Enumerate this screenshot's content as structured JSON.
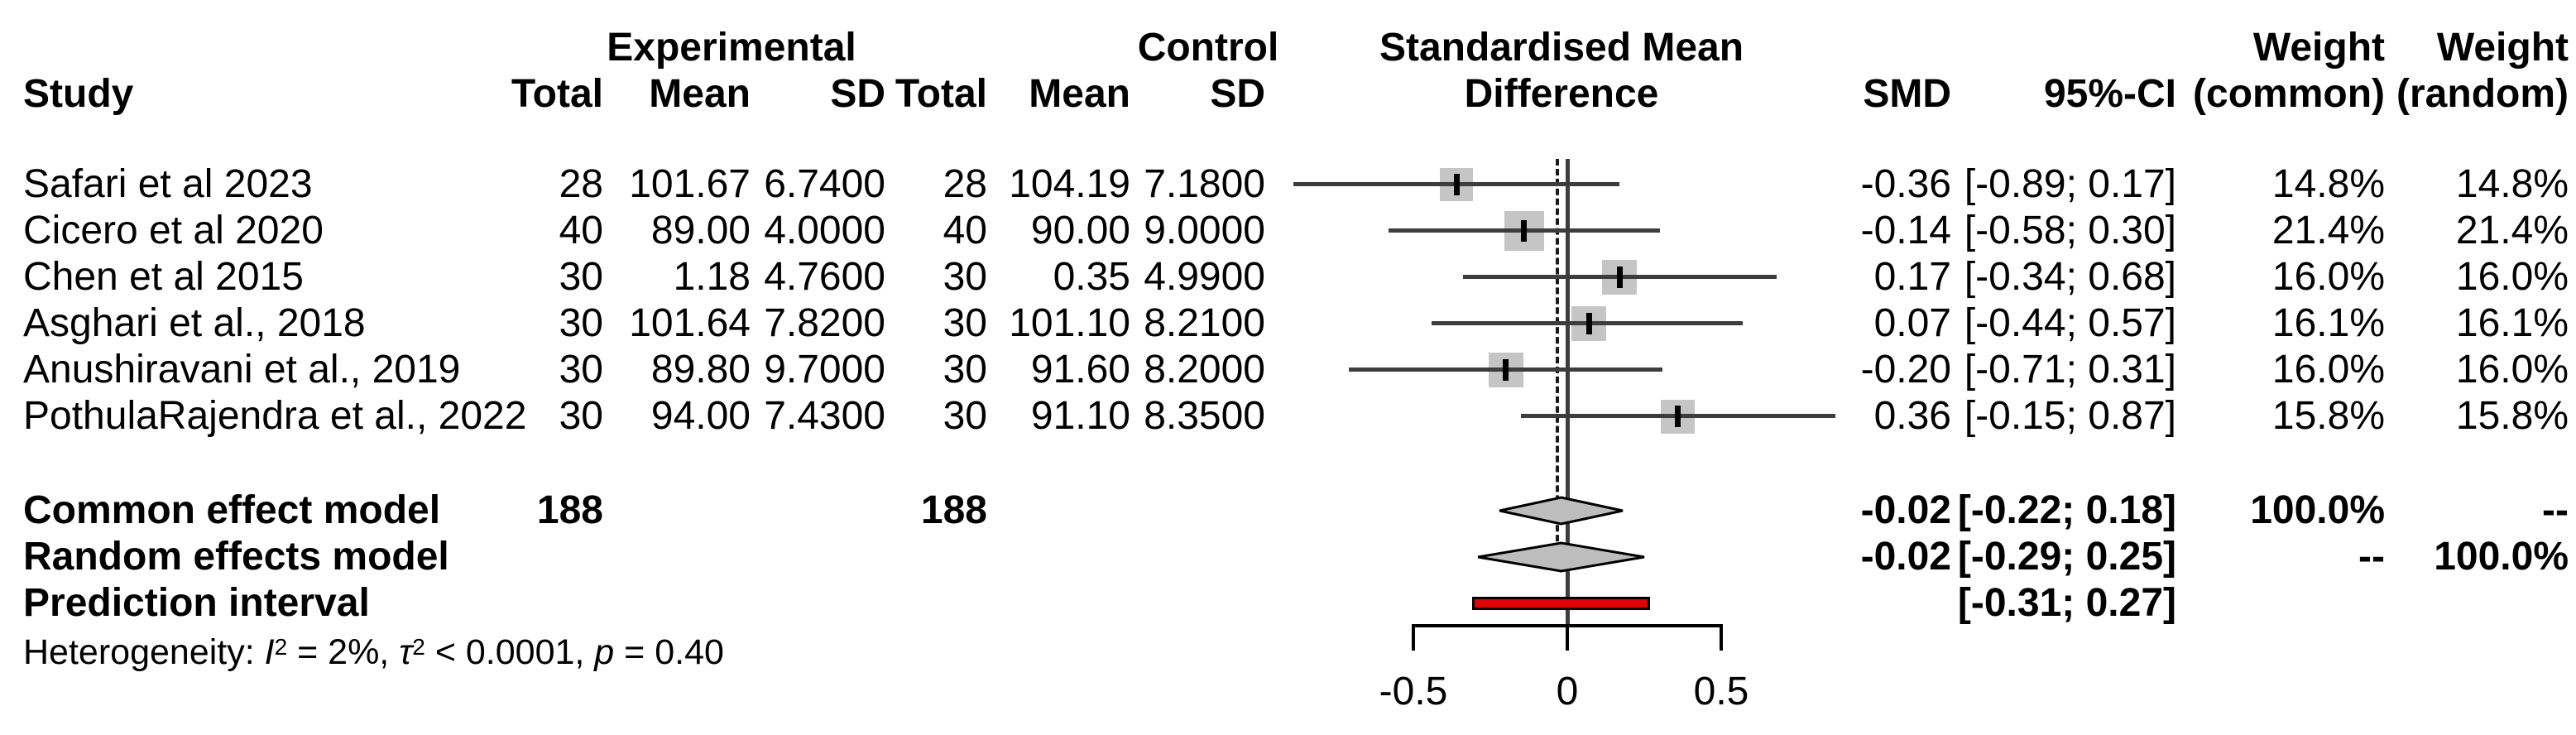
{
  "header": {
    "study": "Study",
    "group_experimental": "Experimental",
    "group_control": "Control",
    "exp_total": "Total",
    "exp_mean": "Mean",
    "exp_sd": "SD",
    "ctrl_total": "Total",
    "ctrl_mean": "Mean",
    "ctrl_sd": "SD",
    "plot_title_line1": "Standardised Mean",
    "plot_title_line2": "Difference",
    "smd": "SMD",
    "ci": "95%-CI",
    "weight_common": "Weight",
    "weight_common_sub": "(common)",
    "weight_random": "Weight",
    "weight_random_sub": "(random)"
  },
  "studies": [
    {
      "name": "Safari et al 2023",
      "exp_total": "28",
      "exp_mean": "101.67",
      "exp_sd": "6.7400",
      "ctrl_total": "28",
      "ctrl_mean": "104.19",
      "ctrl_sd": "7.1800",
      "smd_label": "-0.36",
      "ci_label": "[-0.89; 0.17]",
      "weight_common": "14.8%",
      "weight_random": "14.8%"
    },
    {
      "name": "Cicero et al 2020",
      "exp_total": "40",
      "exp_mean": "89.00",
      "exp_sd": "4.0000",
      "ctrl_total": "40",
      "ctrl_mean": "90.00",
      "ctrl_sd": "9.0000",
      "smd_label": "-0.14",
      "ci_label": "[-0.58; 0.30]",
      "weight_common": "21.4%",
      "weight_random": "21.4%"
    },
    {
      "name": "Chen et al 2015",
      "exp_total": "30",
      "exp_mean": "1.18",
      "exp_sd": "4.7600",
      "ctrl_total": "30",
      "ctrl_mean": "0.35",
      "ctrl_sd": "4.9900",
      "smd_label": "0.17",
      "ci_label": "[-0.34; 0.68]",
      "weight_common": "16.0%",
      "weight_random": "16.0%"
    },
    {
      "name": "Asghari et al., 2018",
      "exp_total": "30",
      "exp_mean": "101.64",
      "exp_sd": "7.8200",
      "ctrl_total": "30",
      "ctrl_mean": "101.10",
      "ctrl_sd": "8.2100",
      "smd_label": "0.07",
      "ci_label": "[-0.44; 0.57]",
      "weight_common": "16.1%",
      "weight_random": "16.1%"
    },
    {
      "name": "Anushiravani et al., 2019",
      "exp_total": "30",
      "exp_mean": "89.80",
      "exp_sd": "9.7000",
      "ctrl_total": "30",
      "ctrl_mean": "91.60",
      "ctrl_sd": "8.2000",
      "smd_label": "-0.20",
      "ci_label": "[-0.71; 0.31]",
      "weight_common": "16.0%",
      "weight_random": "16.0%"
    },
    {
      "name": "PothulaRajendra et al., 2022",
      "exp_total": "30",
      "exp_mean": "94.00",
      "exp_sd": "7.4300",
      "ctrl_total": "30",
      "ctrl_mean": "91.10",
      "ctrl_sd": "8.3500",
      "smd_label": "0.36",
      "ci_label": "[-0.15; 0.87]",
      "weight_common": "15.8%",
      "weight_random": "15.8%"
    }
  ],
  "summary": {
    "common": {
      "label": "Common effect model",
      "exp_total": "188",
      "ctrl_total": "188",
      "smd_label": "-0.02",
      "ci_label": "[-0.22; 0.18]",
      "weight_common": "100.0%",
      "weight_random": "--"
    },
    "random": {
      "label": "Random effects model",
      "smd_label": "-0.02",
      "ci_label": "[-0.29; 0.25]",
      "weight_common": "--",
      "weight_random": "100.0%"
    },
    "prediction": {
      "label": "Prediction interval",
      "ci_label": "[-0.31; 0.27]"
    }
  },
  "heterogeneity": {
    "seg1": "Heterogeneity: ",
    "seg2": "I",
    "seg3": "2",
    "seg4": " = 2%, ",
    "seg5": "τ",
    "seg6": "2",
    "seg7": " < 0.0001, ",
    "seg8": "p",
    "seg9": " = 0.40"
  },
  "axis": {
    "tick_labels": [
      "-0.5",
      "0",
      "0.5"
    ]
  },
  "colors": {
    "background": "#ffffff",
    "text": "#000000",
    "ci_line": "#3d3d3d",
    "marker_fill": "#c5c5c5",
    "marker_tick": "#000000",
    "diamond_fill": "#bdbdbd",
    "diamond_stroke": "#000000",
    "prediction_bar": "#e80000"
  },
  "chart_data": {
    "type": "scatter",
    "variant": "forest-plot",
    "effect_measure": "SMD",
    "title": "Standardised Mean Difference",
    "x_axis": {
      "ticks": [
        -0.5,
        0,
        0.5
      ],
      "tick_labels": [
        "-0.5",
        "0",
        "0.5"
      ],
      "reference_line": 0,
      "pooled_effect_line": -0.02
    },
    "studies": [
      {
        "name": "Safari et al 2023",
        "smd": -0.36,
        "ci": [
          -0.89,
          0.17
        ],
        "weight_common_pct": 14.8,
        "weight_random_pct": 14.8
      },
      {
        "name": "Cicero et al 2020",
        "smd": -0.14,
        "ci": [
          -0.58,
          0.3
        ],
        "weight_common_pct": 21.4,
        "weight_random_pct": 21.4
      },
      {
        "name": "Chen et al 2015",
        "smd": 0.17,
        "ci": [
          -0.34,
          0.68
        ],
        "weight_common_pct": 16.0,
        "weight_random_pct": 16.0
      },
      {
        "name": "Asghari et al., 2018",
        "smd": 0.07,
        "ci": [
          -0.44,
          0.57
        ],
        "weight_common_pct": 16.1,
        "weight_random_pct": 16.1
      },
      {
        "name": "Anushiravani et al., 2019",
        "smd": -0.2,
        "ci": [
          -0.71,
          0.31
        ],
        "weight_common_pct": 16.0,
        "weight_random_pct": 16.0
      },
      {
        "name": "PothulaRajendra et al., 2022",
        "smd": 0.36,
        "ci": [
          -0.15,
          0.87
        ],
        "weight_common_pct": 15.8,
        "weight_random_pct": 15.8
      }
    ],
    "totals": {
      "experimental": 188,
      "control": 188
    },
    "common_effect": {
      "smd": -0.02,
      "ci": [
        -0.22,
        0.18
      ],
      "weight_common_pct": 100.0
    },
    "random_effects": {
      "smd": -0.02,
      "ci": [
        -0.29,
        0.25
      ],
      "weight_random_pct": 100.0
    },
    "prediction_interval": [
      -0.31,
      0.27
    ],
    "heterogeneity": {
      "I2": "2%",
      "tau2": "< 0.0001",
      "p": "0.40"
    }
  }
}
